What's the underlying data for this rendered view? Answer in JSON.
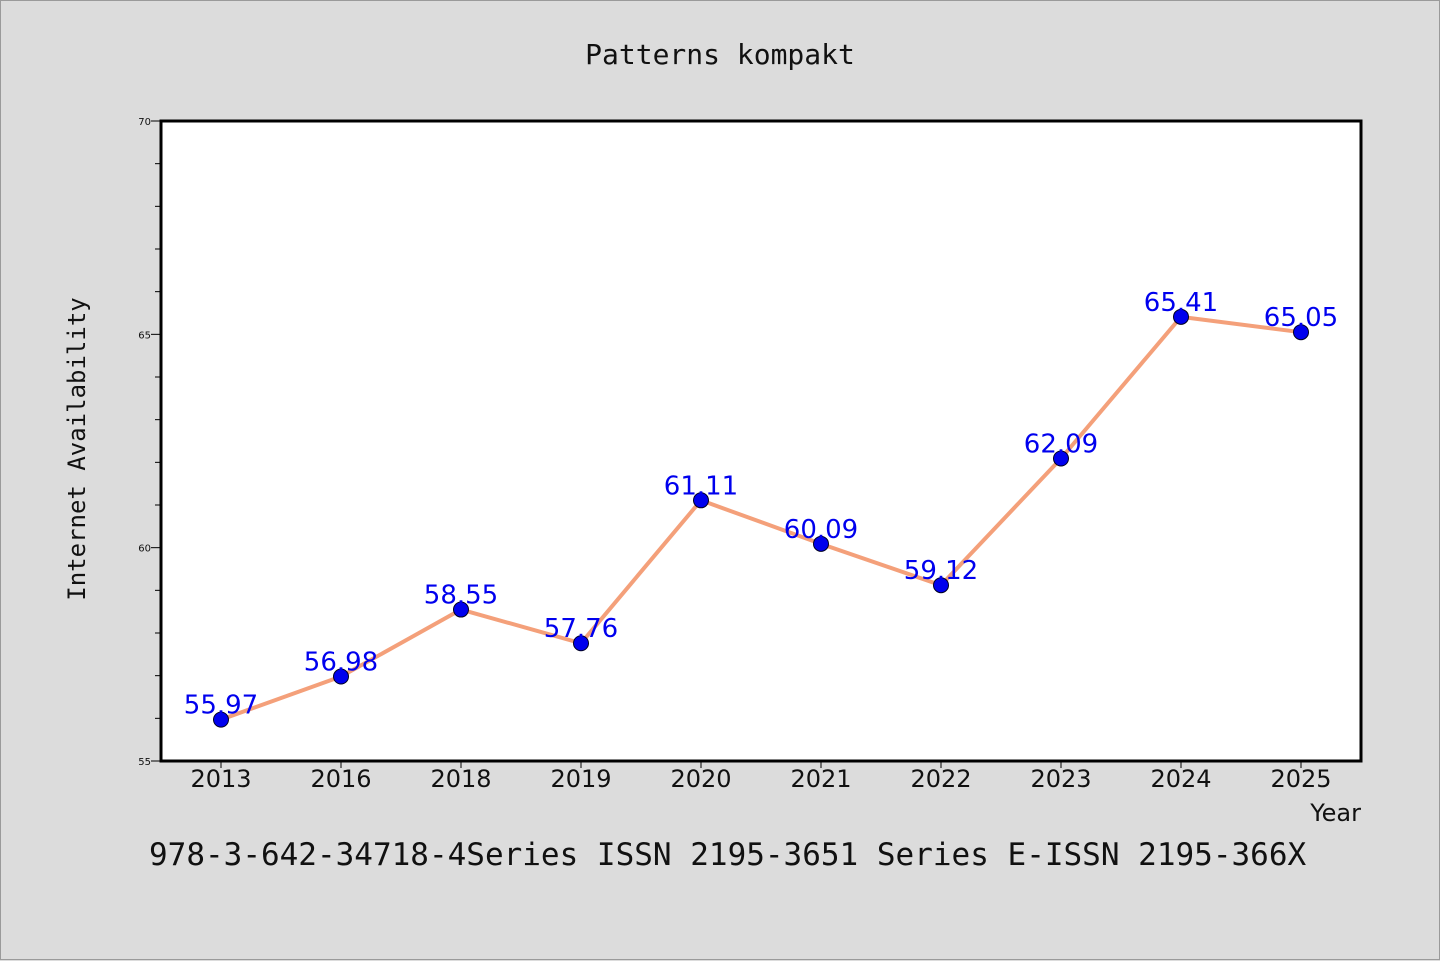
{
  "chart_data": {
    "type": "line",
    "title": "Patterns kompakt",
    "xlabel": "Year",
    "ylabel": "Internet Availability",
    "categories": [
      "2013",
      "2016",
      "2018",
      "2019",
      "2020",
      "2021",
      "2022",
      "2023",
      "2024",
      "2025"
    ],
    "series": [
      {
        "values": [
          55.97,
          56.98,
          58.55,
          57.76,
          61.11,
          60.09,
          59.12,
          62.09,
          65.41,
          65.05
        ]
      }
    ],
    "data_labels": [
      "55.97",
      "56.98",
      "58.55",
      "57.76",
      "61.11",
      "60.09",
      "59.12",
      "62.09",
      "65.41",
      "65.05"
    ],
    "ylim": [
      55,
      70
    ],
    "yticks": [
      "55",
      "60",
      "65",
      "70"
    ],
    "grid": false,
    "line_color": "#f4a07a",
    "marker_color": "#0000ee",
    "label_color": "#0000ee"
  },
  "footer_text": "978-3-642-34718-4Series ISSN 2195-3651 Series E-ISSN 2195-366X"
}
